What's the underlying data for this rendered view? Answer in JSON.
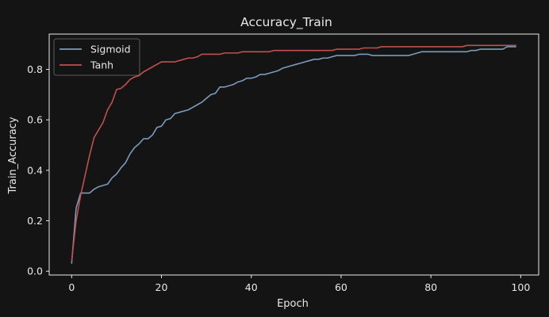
{
  "colors": {
    "background": "#141414",
    "axes": "#e8e8e8",
    "text": "#e8e8e8",
    "legend_bg": "#141414",
    "legend_border": "#5a5a5a"
  },
  "chart_data": {
    "type": "line",
    "title": "Accuracy_Train",
    "xlabel": "Epoch",
    "ylabel": "Train_Accuracy",
    "xlim": [
      -5,
      104
    ],
    "ylim": [
      -0.015,
      0.94
    ],
    "xticks": [
      0,
      20,
      40,
      60,
      80,
      100
    ],
    "yticks": [
      0.0,
      0.2,
      0.4,
      0.6,
      0.8
    ],
    "xtick_labels": [
      "0",
      "20",
      "40",
      "60",
      "80",
      "100"
    ],
    "ytick_labels": [
      "0.0",
      "0.2",
      "0.4",
      "0.6",
      "0.8"
    ],
    "grid": false,
    "legend_position": "top-left",
    "x": [
      0,
      1,
      2,
      3,
      4,
      5,
      6,
      7,
      8,
      9,
      10,
      11,
      12,
      13,
      14,
      15,
      16,
      17,
      18,
      19,
      20,
      21,
      22,
      23,
      24,
      25,
      26,
      27,
      28,
      29,
      30,
      31,
      32,
      33,
      34,
      35,
      36,
      37,
      38,
      39,
      40,
      41,
      42,
      43,
      44,
      45,
      46,
      47,
      48,
      49,
      50,
      51,
      52,
      53,
      54,
      55,
      56,
      57,
      58,
      59,
      60,
      61,
      62,
      63,
      64,
      65,
      66,
      67,
      68,
      69,
      70,
      71,
      72,
      73,
      74,
      75,
      76,
      77,
      78,
      79,
      80,
      81,
      82,
      83,
      84,
      85,
      86,
      87,
      88,
      89,
      90,
      91,
      92,
      93,
      94,
      95,
      96,
      97,
      98,
      99
    ],
    "series": [
      {
        "name": "Sigmoid",
        "color": "#7a9bbb",
        "values": [
          0.03,
          0.25,
          0.31,
          0.31,
          0.31,
          0.325,
          0.335,
          0.34,
          0.345,
          0.37,
          0.385,
          0.41,
          0.43,
          0.465,
          0.49,
          0.505,
          0.525,
          0.525,
          0.54,
          0.57,
          0.575,
          0.6,
          0.605,
          0.625,
          0.63,
          0.635,
          0.64,
          0.65,
          0.66,
          0.67,
          0.685,
          0.7,
          0.705,
          0.73,
          0.73,
          0.735,
          0.74,
          0.75,
          0.755,
          0.765,
          0.765,
          0.77,
          0.78,
          0.78,
          0.785,
          0.79,
          0.795,
          0.805,
          0.81,
          0.815,
          0.82,
          0.825,
          0.83,
          0.835,
          0.84,
          0.84,
          0.845,
          0.845,
          0.85,
          0.855,
          0.855,
          0.855,
          0.855,
          0.855,
          0.86,
          0.86,
          0.86,
          0.855,
          0.855,
          0.855,
          0.855,
          0.855,
          0.855,
          0.855,
          0.855,
          0.855,
          0.86,
          0.865,
          0.87,
          0.87,
          0.87,
          0.87,
          0.87,
          0.87,
          0.87,
          0.87,
          0.87,
          0.87,
          0.87,
          0.875,
          0.875,
          0.88,
          0.88,
          0.88,
          0.88,
          0.88,
          0.88,
          0.89,
          0.89,
          0.89
        ]
      },
      {
        "name": "Tanh",
        "color": "#c0504d",
        "values": [
          0.04,
          0.2,
          0.3,
          0.38,
          0.46,
          0.53,
          0.56,
          0.59,
          0.64,
          0.67,
          0.72,
          0.725,
          0.74,
          0.76,
          0.77,
          0.775,
          0.79,
          0.8,
          0.81,
          0.82,
          0.83,
          0.83,
          0.83,
          0.83,
          0.835,
          0.84,
          0.845,
          0.845,
          0.85,
          0.86,
          0.86,
          0.86,
          0.86,
          0.86,
          0.865,
          0.865,
          0.865,
          0.865,
          0.87,
          0.87,
          0.87,
          0.87,
          0.87,
          0.87,
          0.87,
          0.875,
          0.875,
          0.875,
          0.875,
          0.875,
          0.875,
          0.875,
          0.875,
          0.875,
          0.875,
          0.875,
          0.875,
          0.875,
          0.875,
          0.88,
          0.88,
          0.88,
          0.88,
          0.88,
          0.88,
          0.885,
          0.885,
          0.885,
          0.885,
          0.89,
          0.89,
          0.89,
          0.89,
          0.89,
          0.89,
          0.89,
          0.89,
          0.89,
          0.89,
          0.89,
          0.89,
          0.89,
          0.89,
          0.89,
          0.89,
          0.89,
          0.89,
          0.89,
          0.895,
          0.895,
          0.895,
          0.895,
          0.895,
          0.895,
          0.895,
          0.895,
          0.895,
          0.895,
          0.895,
          0.895
        ]
      }
    ]
  }
}
